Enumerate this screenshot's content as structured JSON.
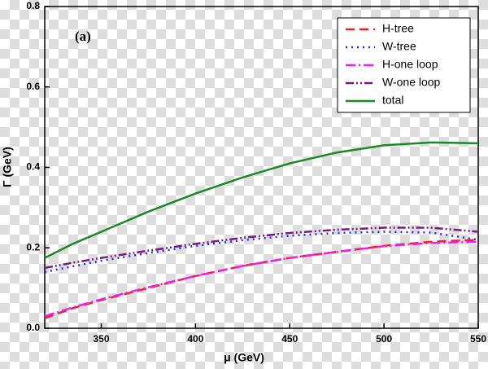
{
  "chart_data": {
    "type": "line",
    "annotation": "(a)",
    "x_label": "μ (GeV)",
    "y_label": "Γ (GeV)",
    "x": [
      320,
      335,
      350,
      375,
      400,
      425,
      450,
      475,
      500,
      525,
      550
    ],
    "series": [
      {
        "name": "H-tree",
        "color": "#e8251f",
        "style": "dash",
        "values": [
          0.025,
          0.05,
          0.07,
          0.1,
          0.13,
          0.155,
          0.175,
          0.19,
          0.205,
          0.215,
          0.22
        ]
      },
      {
        "name": "W-tree",
        "color": "#1f2ee8",
        "style": "dot",
        "values": [
          0.14,
          0.154,
          0.168,
          0.187,
          0.205,
          0.219,
          0.23,
          0.237,
          0.24,
          0.238,
          0.22
        ]
      },
      {
        "name": "H-one loop",
        "color": "#f01ef0",
        "style": "dashdot",
        "values": [
          0.03,
          0.052,
          0.072,
          0.102,
          0.13,
          0.155,
          0.175,
          0.19,
          0.204,
          0.212,
          0.215
        ]
      },
      {
        "name": "W-one loop",
        "color": "#7a1a80",
        "style": "dashdotdot",
        "values": [
          0.15,
          0.163,
          0.175,
          0.193,
          0.21,
          0.225,
          0.237,
          0.245,
          0.25,
          0.25,
          0.24
        ]
      },
      {
        "name": "total",
        "color": "#1a8a24",
        "style": "solid",
        "values": [
          0.175,
          0.21,
          0.24,
          0.29,
          0.335,
          0.375,
          0.41,
          0.437,
          0.455,
          0.462,
          0.46
        ]
      }
    ],
    "xlim": [
      320,
      550
    ],
    "xticks": [
      350,
      400,
      450,
      500,
      550
    ],
    "ylim": [
      0,
      0.8
    ],
    "yticks": [
      {
        "value": 0,
        "label": "0.0"
      },
      0.2,
      0.4,
      0.6,
      0.8
    ],
    "legend": "upper right"
  }
}
